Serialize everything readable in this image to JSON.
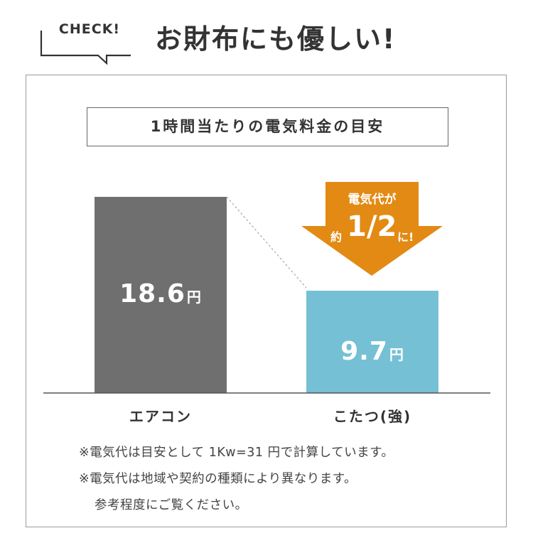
{
  "header": {
    "check_label": "CHECK!",
    "headline": "お財布にも優しい!"
  },
  "chart_data": {
    "type": "bar",
    "title": "1時間当たりの電気料金の目安",
    "categories": [
      "エアコン",
      "こたつ(強)"
    ],
    "values": [
      18.6,
      9.7
    ],
    "unit": "円",
    "value_labels": [
      "18.6",
      "9.7"
    ],
    "ylim": [
      0,
      20
    ],
    "grid": false,
    "colors": [
      "#6f6f6f",
      "#75c0d4"
    ]
  },
  "badge": {
    "line1": "電気代が",
    "prefix": "約",
    "value": "1/2",
    "suffix": "に!",
    "color": "#e28a14"
  },
  "notes": [
    "※電気代は目安として 1Kw=31 円で計算しています。",
    "※電気代は地域や契約の種類により異なります。",
    "参考程度にご覧ください。"
  ]
}
